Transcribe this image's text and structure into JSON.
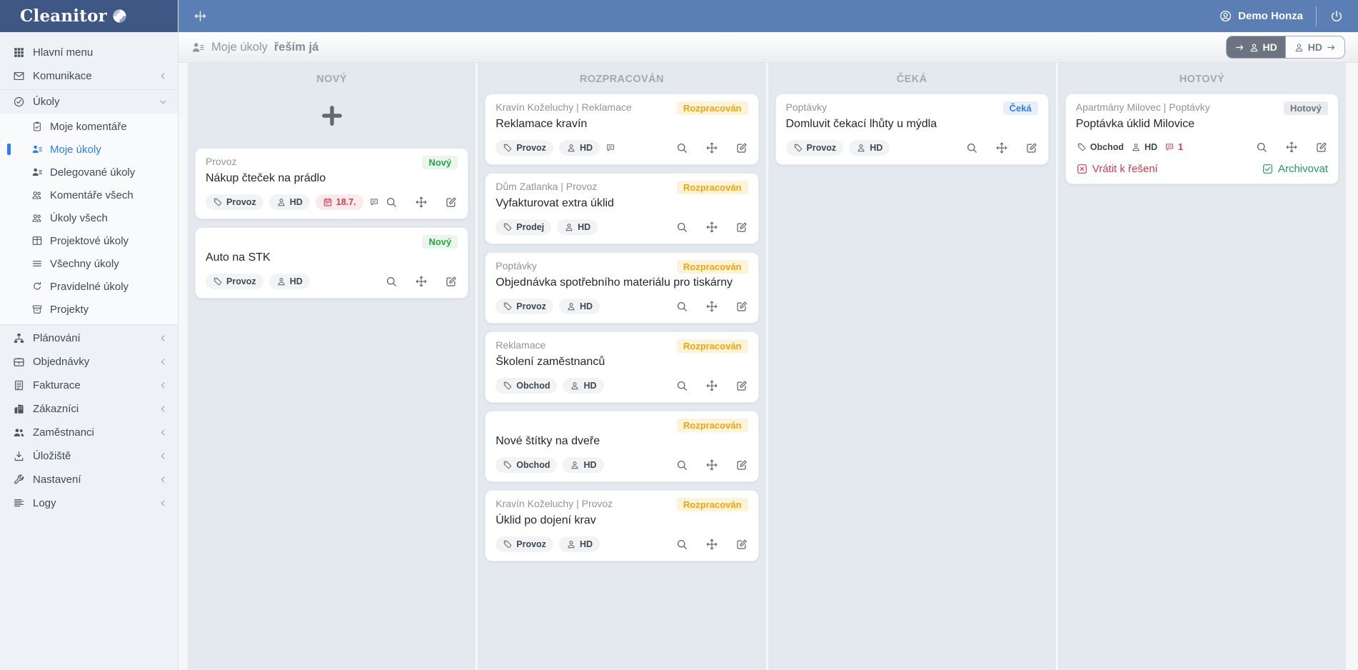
{
  "brand": {
    "name": "Cleanitor"
  },
  "topbar": {
    "user_name": "Demo Honza"
  },
  "page": {
    "title": "Moje úkoly",
    "title_bold": "řeším já",
    "assign_left": {
      "label": "HD"
    },
    "assign_right": {
      "label": "HD"
    }
  },
  "colors": {
    "topbar": "#5b7eb4",
    "brand_bg": "#3e5784",
    "active_item": "#2e7cf6",
    "status_new": "#28a745",
    "status_progress": "#f1a40b",
    "status_wait": "#2e7cf6",
    "status_done": "#6d757d",
    "danger": "#d63a4a",
    "success": "#1fa055"
  },
  "sidebar": {
    "items": [
      {
        "key": "hlavni-menu",
        "label": "Hlavní menu",
        "icon": "grid"
      },
      {
        "key": "komunikace",
        "label": "Komunikace",
        "icon": "mail",
        "chevron": "left"
      },
      {
        "key": "ukoly",
        "label": "Úkoly",
        "icon": "check-circle",
        "chevron": "down",
        "children": [
          {
            "key": "moje-komentare",
            "label": "Moje komentáře",
            "icon": "clipboard"
          },
          {
            "key": "moje-ukoly",
            "label": "Moje úkoly",
            "icon": "person-lines",
            "active": true
          },
          {
            "key": "delegovane-ukoly",
            "label": "Delegované úkoly",
            "icon": "person-lines"
          },
          {
            "key": "komentare-vsech",
            "label": "Komentáře všech",
            "icon": "people"
          },
          {
            "key": "ukoly-vsech",
            "label": "Úkoly všech",
            "icon": "people"
          },
          {
            "key": "projektove-ukoly",
            "label": "Projektové úkoly",
            "icon": "kanban"
          },
          {
            "key": "vsechny-ukoly",
            "label": "Všechny úkoly",
            "icon": "list"
          },
          {
            "key": "pravidelne-ukoly",
            "label": "Pravidelné úkoly",
            "icon": "refresh"
          },
          {
            "key": "projekty",
            "label": "Projekty",
            "icon": "archive"
          }
        ]
      },
      {
        "key": "planovani",
        "label": "Plánování",
        "icon": "sitemap",
        "chevron": "left"
      },
      {
        "key": "objednavky",
        "label": "Objednávky",
        "icon": "chest",
        "chevron": "left"
      },
      {
        "key": "fakturace",
        "label": "Fakturace",
        "icon": "invoice",
        "chevron": "left"
      },
      {
        "key": "zakaznici",
        "label": "Zákazníci",
        "icon": "building",
        "chevron": "left"
      },
      {
        "key": "zamestnanci",
        "label": "Zaměstnanci",
        "icon": "users",
        "chevron": "left"
      },
      {
        "key": "uloziste",
        "label": "Úložiště",
        "icon": "download",
        "chevron": "left"
      },
      {
        "key": "nastaveni",
        "label": "Nastavení",
        "icon": "wrench",
        "chevron": "left"
      },
      {
        "key": "logy",
        "label": "Logy",
        "icon": "log",
        "chevron": "left"
      }
    ]
  },
  "card_action_icons": [
    "search",
    "move",
    "edit"
  ],
  "board": {
    "columns": [
      {
        "name": "NOVÝ",
        "has_add": true,
        "cards": [
          {
            "project": "Provoz",
            "status": "Nový",
            "status_type": "new",
            "title": "Nákup čteček na prádlo",
            "meta": [
              {
                "icon": "tag",
                "label": "Provoz"
              },
              {
                "icon": "person",
                "label": "HD"
              },
              {
                "icon": "calendar",
                "label": "18.7.",
                "style": "danger"
              },
              {
                "icon": "comment",
                "label": ""
              }
            ]
          },
          {
            "project": "",
            "status": "Nový",
            "status_type": "new",
            "title": "Auto na STK",
            "meta": [
              {
                "icon": "tag",
                "label": "Provoz"
              },
              {
                "icon": "person",
                "label": "HD"
              }
            ]
          }
        ]
      },
      {
        "name": "ROZPRACOVÁN",
        "cards": [
          {
            "project": "Kravín Koželuchy | Reklamace",
            "status": "Rozpracován",
            "status_type": "progress",
            "title": "Reklamace kravín",
            "meta": [
              {
                "icon": "tag",
                "label": "Provoz"
              },
              {
                "icon": "person",
                "label": "HD"
              },
              {
                "icon": "comment",
                "label": ""
              }
            ]
          },
          {
            "project": "Dům Zatlanka | Provoz",
            "status": "Rozpracován",
            "status_type": "progress",
            "title": "Vyfakturovat extra úklid",
            "meta": [
              {
                "icon": "tag",
                "label": "Prodej"
              },
              {
                "icon": "person",
                "label": "HD"
              }
            ]
          },
          {
            "project": "Poptávky",
            "status": "Rozpracován",
            "status_type": "progress",
            "title": "Objednávka spotřebního materiálu pro tiskárny",
            "meta": [
              {
                "icon": "tag",
                "label": "Provoz"
              },
              {
                "icon": "person",
                "label": "HD"
              }
            ]
          },
          {
            "project": "Reklamace",
            "status": "Rozpracován",
            "status_type": "progress",
            "title": "Školení zaměstnanců",
            "meta": [
              {
                "icon": "tag",
                "label": "Obchod"
              },
              {
                "icon": "person",
                "label": "HD"
              }
            ]
          },
          {
            "project": "",
            "status": "Rozpracován",
            "status_type": "progress",
            "title": "Nové štítky na dveře",
            "meta": [
              {
                "icon": "tag",
                "label": "Obchod"
              },
              {
                "icon": "person",
                "label": "HD"
              }
            ]
          },
          {
            "project": "Kravín Koželuchy | Provoz",
            "status": "Rozpracován",
            "status_type": "progress",
            "title": "Úklid po dojení krav",
            "meta": [
              {
                "icon": "tag",
                "label": "Provoz"
              },
              {
                "icon": "person",
                "label": "HD"
              }
            ]
          }
        ]
      },
      {
        "name": "ČEKÁ",
        "cards": [
          {
            "project": "Poptávky",
            "status": "Čeká",
            "status_type": "wait",
            "title": "Domluvit čekací lhůty u mýdla",
            "meta": [
              {
                "icon": "tag",
                "label": "Provoz"
              },
              {
                "icon": "person",
                "label": "HD"
              }
            ]
          }
        ]
      },
      {
        "name": "HOTOVÝ",
        "cards": [
          {
            "project": "Apartmány Milovec | Poptávky",
            "status": "Hotový",
            "status_type": "done",
            "title": "Poptávka úklid Milovice",
            "plain_meta": true,
            "meta": [
              {
                "icon": "tag",
                "label": "Obchod"
              },
              {
                "icon": "person",
                "label": "HD"
              },
              {
                "icon": "comment",
                "label": "1",
                "style": "danger"
              }
            ],
            "actions": {
              "return_label": "Vrátit k řešení",
              "archive_label": "Archivovat"
            }
          }
        ]
      }
    ]
  }
}
